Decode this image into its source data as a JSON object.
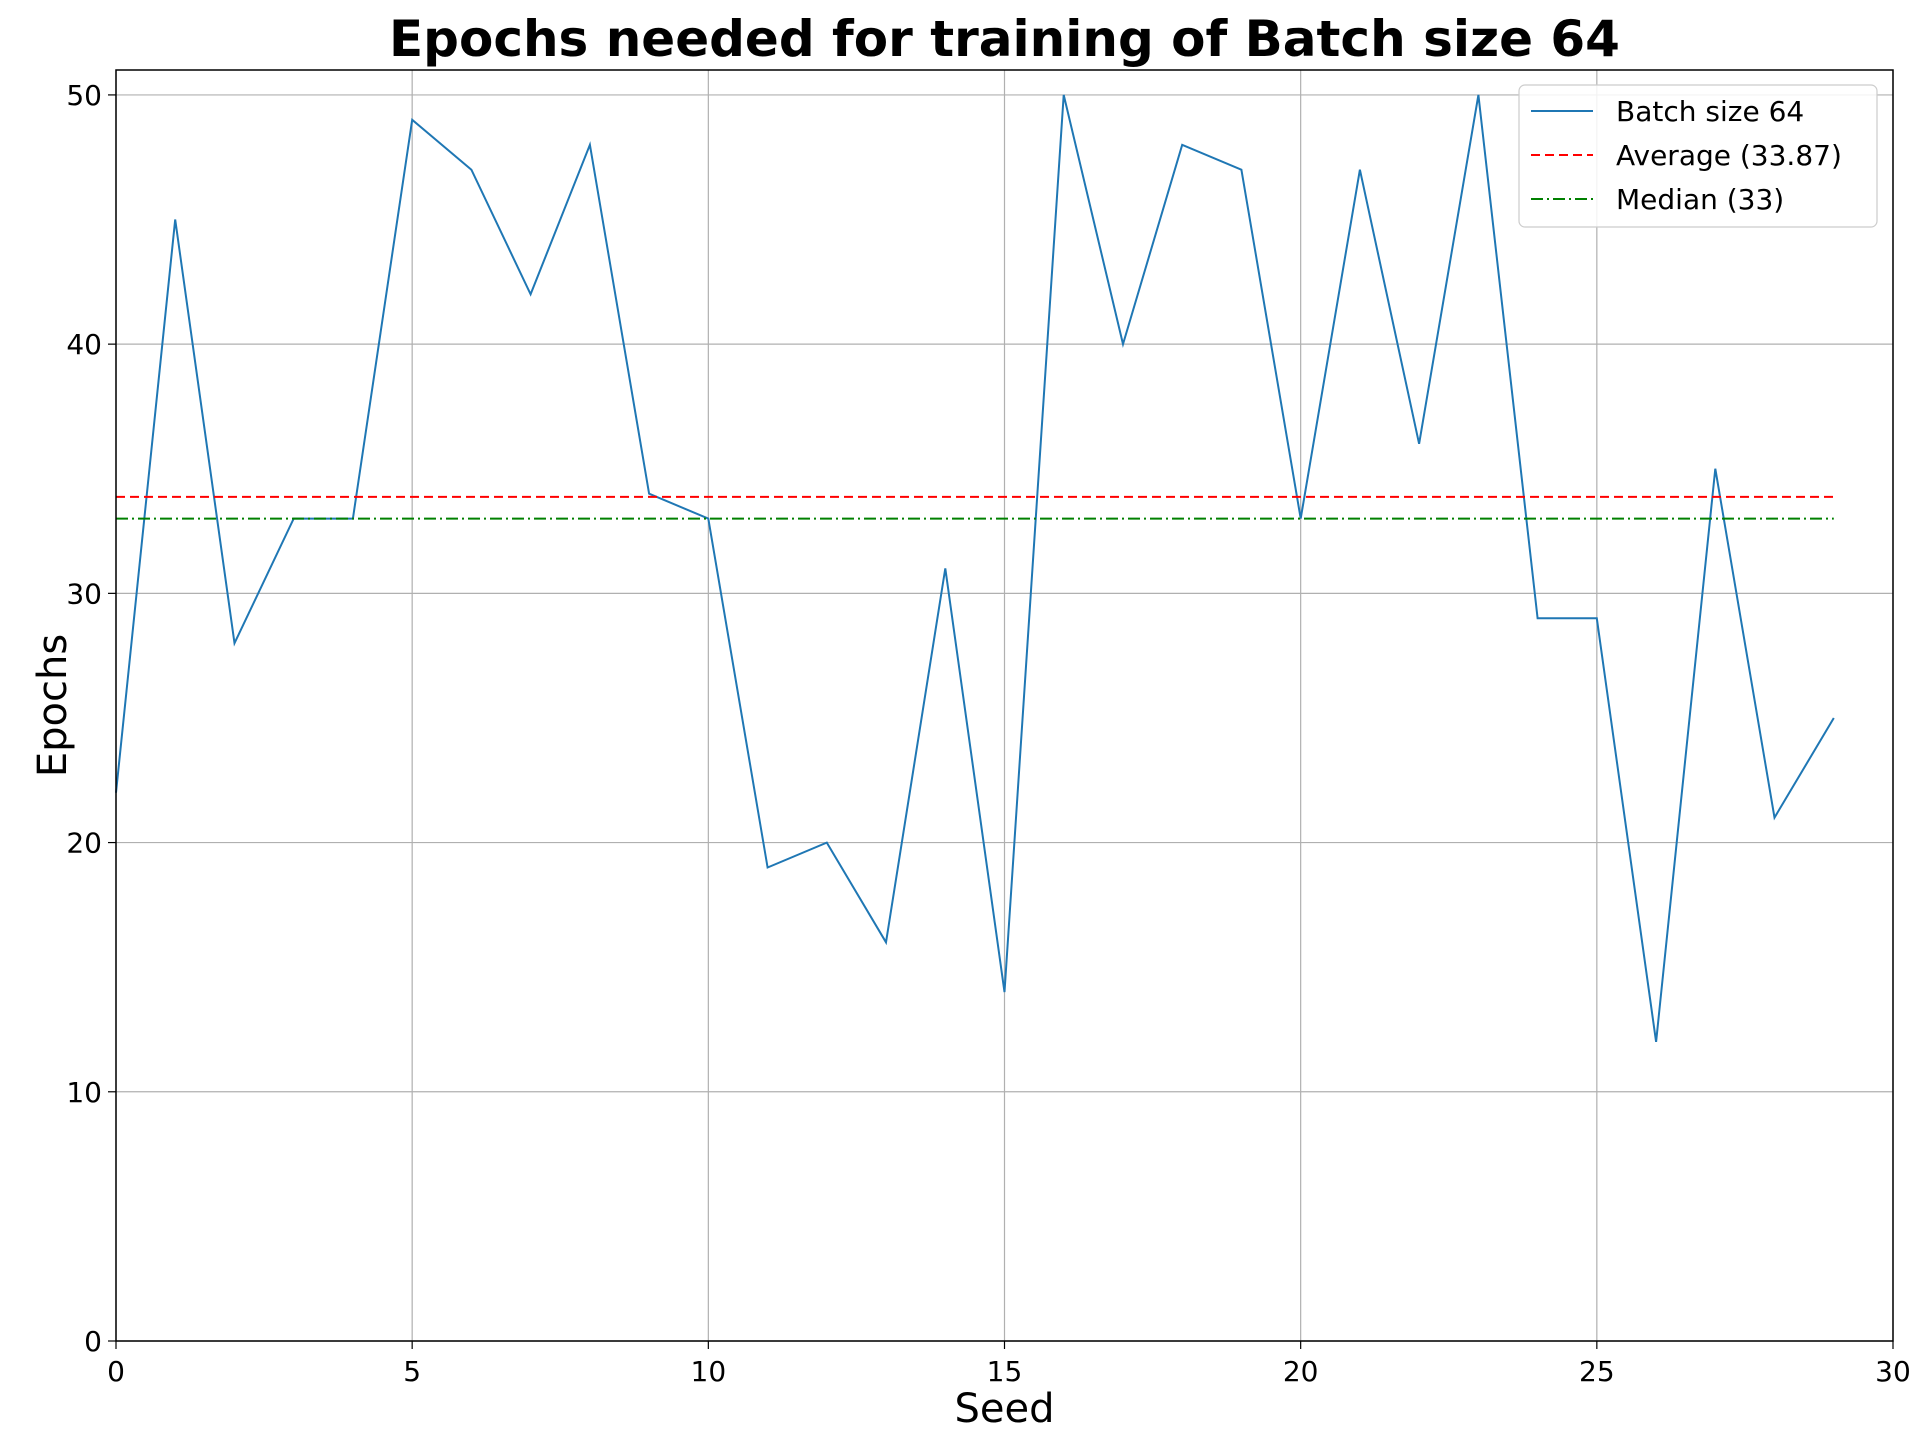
{
  "chart_data": {
    "type": "line",
    "title": "Epochs needed for training of Batch size 64",
    "xlabel": "Seed",
    "ylabel": "Epochs",
    "xlim": [
      0,
      30
    ],
    "ylim": [
      0,
      51
    ],
    "xticks": [
      0,
      5,
      10,
      15,
      20,
      25,
      30
    ],
    "yticks": [
      0,
      10,
      20,
      30,
      40,
      50
    ],
    "grid": true,
    "legend_position": "top-right",
    "series": [
      {
        "name": "Batch size 64",
        "color": "#1f77b4",
        "style": "solid",
        "x": [
          0,
          1,
          2,
          3,
          4,
          5,
          6,
          7,
          8,
          9,
          10,
          11,
          12,
          13,
          14,
          15,
          16,
          17,
          18,
          19,
          20,
          21,
          22,
          23,
          24,
          25,
          26,
          27,
          28,
          29
        ],
        "y": [
          22,
          45,
          28,
          33,
          33,
          49,
          47,
          42,
          48,
          34,
          33,
          19,
          20,
          16,
          31,
          14,
          50,
          40,
          48,
          47,
          33,
          47,
          36,
          50,
          29,
          29,
          12,
          35,
          21,
          25
        ]
      },
      {
        "name": "Average (33.87)",
        "color": "#ff0000",
        "style": "dashed",
        "x": [
          0,
          29
        ],
        "y": [
          33.87,
          33.87
        ]
      },
      {
        "name": "Median (33)",
        "color": "#008000",
        "style": "dashdot",
        "x": [
          0,
          29
        ],
        "y": [
          33,
          33
        ]
      }
    ]
  }
}
